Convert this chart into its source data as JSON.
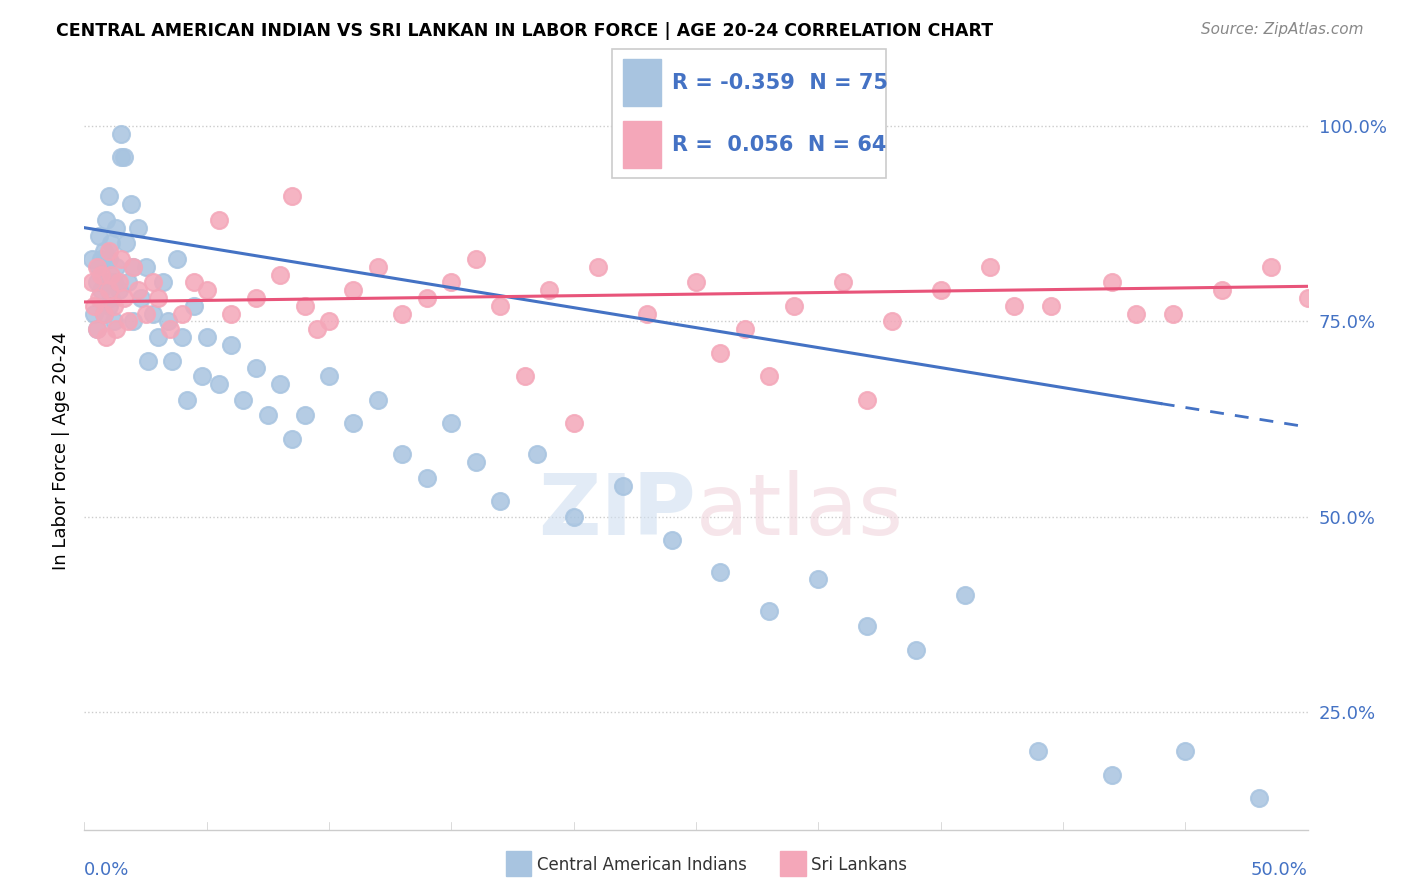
{
  "title": "CENTRAL AMERICAN INDIAN VS SRI LANKAN IN LABOR FORCE | AGE 20-24 CORRELATION CHART",
  "source": "Source: ZipAtlas.com",
  "ylabel": "In Labor Force | Age 20-24",
  "ytick_vals": [
    0.25,
    0.5,
    0.75,
    1.0
  ],
  "xlim": [
    0.0,
    0.5
  ],
  "ylim": [
    0.1,
    1.07
  ],
  "legend_r_blue": "-0.359",
  "legend_n_blue": "75",
  "legend_r_pink": "0.056",
  "legend_n_pink": "64",
  "blue_color": "#a8c4e0",
  "pink_color": "#f4a7b9",
  "blue_line_color": "#4472c4",
  "pink_line_color": "#e8547a",
  "legend_label_blue": "Central American Indians",
  "legend_label_pink": "Sri Lankans",
  "watermark": "ZIPatlas",
  "blue_line_x0": 0.0,
  "blue_line_y0": 0.87,
  "blue_line_x1": 0.44,
  "blue_line_y1": 0.645,
  "blue_line_dash_x1": 0.5,
  "blue_line_dash_y1": 0.615,
  "pink_line_x0": 0.0,
  "pink_line_y0": 0.775,
  "pink_line_x1": 0.5,
  "pink_line_y1": 0.795,
  "blue_dots_x": [
    0.003,
    0.004,
    0.005,
    0.005,
    0.006,
    0.006,
    0.007,
    0.007,
    0.008,
    0.008,
    0.009,
    0.009,
    0.01,
    0.01,
    0.01,
    0.011,
    0.011,
    0.012,
    0.012,
    0.013,
    0.013,
    0.014,
    0.015,
    0.015,
    0.016,
    0.017,
    0.018,
    0.019,
    0.02,
    0.02,
    0.022,
    0.023,
    0.025,
    0.026,
    0.028,
    0.03,
    0.032,
    0.034,
    0.036,
    0.038,
    0.04,
    0.042,
    0.045,
    0.048,
    0.05,
    0.055,
    0.06,
    0.065,
    0.07,
    0.075,
    0.08,
    0.085,
    0.09,
    0.1,
    0.11,
    0.12,
    0.13,
    0.14,
    0.15,
    0.16,
    0.17,
    0.185,
    0.2,
    0.22,
    0.24,
    0.26,
    0.28,
    0.3,
    0.32,
    0.34,
    0.36,
    0.39,
    0.42,
    0.45,
    0.48
  ],
  "blue_dots_y": [
    0.83,
    0.76,
    0.74,
    0.8,
    0.82,
    0.86,
    0.79,
    0.83,
    0.76,
    0.84,
    0.8,
    0.88,
    0.77,
    0.83,
    0.91,
    0.78,
    0.85,
    0.8,
    0.75,
    0.82,
    0.87,
    0.79,
    0.96,
    0.99,
    0.96,
    0.85,
    0.8,
    0.9,
    0.82,
    0.75,
    0.87,
    0.78,
    0.82,
    0.7,
    0.76,
    0.73,
    0.8,
    0.75,
    0.7,
    0.83,
    0.73,
    0.65,
    0.77,
    0.68,
    0.73,
    0.67,
    0.72,
    0.65,
    0.69,
    0.63,
    0.67,
    0.6,
    0.63,
    0.68,
    0.62,
    0.65,
    0.58,
    0.55,
    0.62,
    0.57,
    0.52,
    0.58,
    0.5,
    0.54,
    0.47,
    0.43,
    0.38,
    0.42,
    0.36,
    0.33,
    0.4,
    0.2,
    0.17,
    0.2,
    0.14
  ],
  "pink_dots_x": [
    0.003,
    0.004,
    0.005,
    0.005,
    0.006,
    0.007,
    0.008,
    0.009,
    0.01,
    0.01,
    0.011,
    0.012,
    0.013,
    0.014,
    0.015,
    0.016,
    0.018,
    0.02,
    0.022,
    0.025,
    0.028,
    0.03,
    0.035,
    0.04,
    0.045,
    0.05,
    0.06,
    0.07,
    0.08,
    0.09,
    0.1,
    0.11,
    0.12,
    0.13,
    0.14,
    0.15,
    0.17,
    0.19,
    0.21,
    0.23,
    0.25,
    0.27,
    0.29,
    0.31,
    0.33,
    0.35,
    0.37,
    0.395,
    0.42,
    0.445,
    0.465,
    0.485,
    0.5,
    0.18,
    0.16,
    0.085,
    0.26,
    0.38,
    0.43,
    0.28,
    0.32,
    0.2,
    0.095,
    0.055
  ],
  "pink_dots_y": [
    0.8,
    0.77,
    0.74,
    0.82,
    0.78,
    0.81,
    0.76,
    0.73,
    0.79,
    0.84,
    0.81,
    0.77,
    0.74,
    0.8,
    0.83,
    0.78,
    0.75,
    0.82,
    0.79,
    0.76,
    0.8,
    0.78,
    0.74,
    0.76,
    0.8,
    0.79,
    0.76,
    0.78,
    0.81,
    0.77,
    0.75,
    0.79,
    0.82,
    0.76,
    0.78,
    0.8,
    0.77,
    0.79,
    0.82,
    0.76,
    0.8,
    0.74,
    0.77,
    0.8,
    0.75,
    0.79,
    0.82,
    0.77,
    0.8,
    0.76,
    0.79,
    0.82,
    0.78,
    0.68,
    0.83,
    0.91,
    0.71,
    0.77,
    0.76,
    0.68,
    0.65,
    0.62,
    0.74,
    0.88
  ]
}
